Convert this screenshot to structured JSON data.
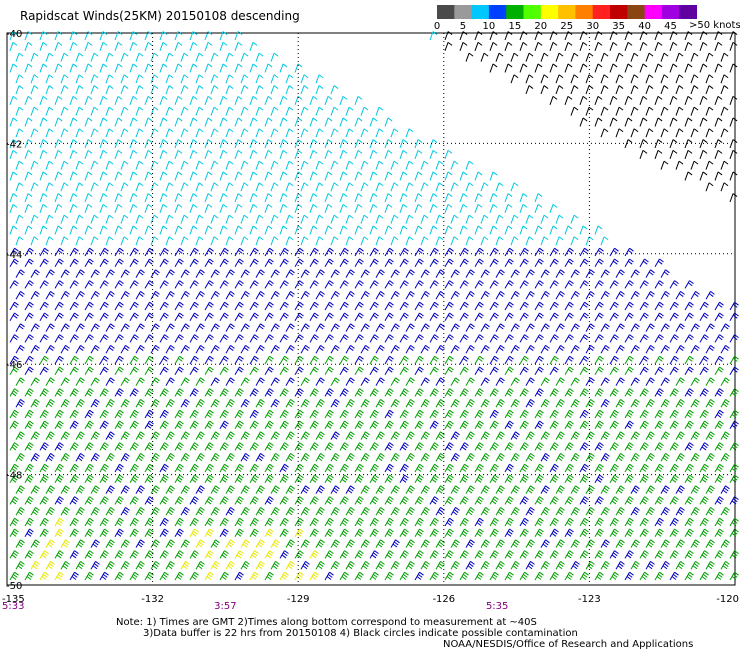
{
  "title": "Rapidscat Winds(25KM) 20150108 descending",
  "legend": {
    "unit_label": ">50 knots",
    "ticks": [
      "0",
      "5",
      "10",
      "15",
      "20",
      "25",
      "30",
      "35",
      "40",
      "45"
    ],
    "colors": [
      "#4a4a4a",
      "#9a9a9a",
      "#00c8ff",
      "#0040ff",
      "#00b000",
      "#50ff00",
      "#ffff00",
      "#ffc000",
      "#ff8000",
      "#ff2020",
      "#c00000",
      "#8b4513",
      "#ff00ff",
      "#a000e0",
      "#6000a0"
    ]
  },
  "lat_labels": [
    "-40",
    "-42",
    "-44",
    "-46",
    "-48",
    "-50"
  ],
  "lon_labels": [
    "-135",
    "-132",
    "-129",
    "-126",
    "-123",
    "-120"
  ],
  "lon_range": [
    -135,
    -120
  ],
  "lat_range": [
    -40,
    -50
  ],
  "time_labels": [
    {
      "text": "5:33",
      "lon": -135
    },
    {
      "text": "3:57",
      "lon": -130.5
    },
    {
      "text": "5:35",
      "lon": -124.9
    }
  ],
  "notes": [
    "Note: 1) Times are GMT 2)Times along bottom correspond to measurement at ~40S",
    "3)Data buffer is 22 hrs from 20150108 4) Black circles indicate possible contamination",
    "NOAA/NESDIS/Office of Research and Applications"
  ],
  "colors": {
    "light_wind": "#00c8e0",
    "calm_wind": "#000000",
    "moderate_wind": "#0000c0",
    "strong_wind": "#00a000",
    "strongest_wind": "#e8e800",
    "time_label": "#800080"
  }
}
